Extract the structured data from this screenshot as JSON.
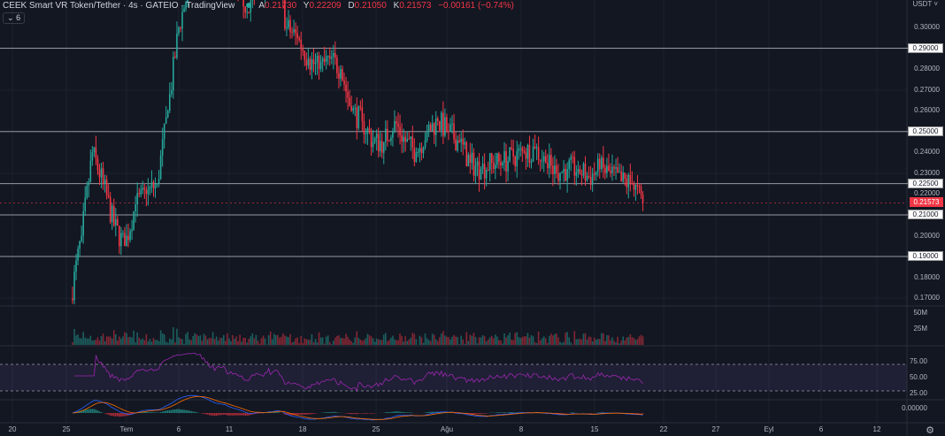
{
  "header": {
    "title": "CEEK Smart VR Token/Tether",
    "interval": "4s",
    "exchange": "GATEIO",
    "source": "TradingView",
    "open_label": "A",
    "open": "0.21730",
    "high_label": "Y",
    "high": "0.22209",
    "low_label": "D",
    "low": "0.21050",
    "close_label": "K",
    "close": "0.21573",
    "change": "−0.00161 (−0.74%)",
    "indicators_count": "6"
  },
  "currency": "USDT",
  "colors": {
    "up": "#26a69a",
    "down": "#f23645",
    "background": "#131722",
    "rsi": "#9c27b0",
    "macd": "#2962ff",
    "signal": "#ff6d00"
  },
  "chart_data": {
    "type": "candlestick",
    "price_ticks": [
      "0.30000",
      "0.28000",
      "0.27000",
      "0.26000",
      "0.24000",
      "0.23000",
      "0.22000",
      "0.20000",
      "0.18000",
      "0.17000"
    ],
    "horizontal_lines": [
      "0.29000",
      "0.25000",
      "0.22500",
      "0.21000",
      "0.19000"
    ],
    "current_price": "0.21573",
    "ylim": [
      0.165,
      0.335
    ],
    "volume_ticks": [
      "50M",
      "25M"
    ],
    "rsi_ticks": [
      "75.00",
      "50.00",
      "25.00"
    ],
    "macd_ticks": [
      "0.00000"
    ],
    "time_ticks": [
      "20",
      "25",
      "Tem",
      "6",
      "11",
      "18",
      "25",
      "Ağu",
      "8",
      "15",
      "22",
      "27",
      "Eyl",
      "6",
      "12"
    ],
    "daily_start": "Jun 26",
    "daily_close": [
      0.2,
      0.24,
      0.225,
      0.205,
      0.195,
      0.215,
      0.22,
      0.225,
      0.26,
      0.3,
      0.32,
      0.33,
      0.32,
      0.33,
      0.32,
      0.31,
      0.315,
      0.32,
      0.33,
      0.3,
      0.295,
      0.285,
      0.28,
      0.285,
      0.28,
      0.26,
      0.255,
      0.245,
      0.245,
      0.255,
      0.245,
      0.24,
      0.25,
      0.255,
      0.25,
      0.245,
      0.235,
      0.232,
      0.235,
      0.235,
      0.238,
      0.24,
      0.242,
      0.235,
      0.23,
      0.232,
      0.232,
      0.228,
      0.232,
      0.23,
      0.226,
      0.225,
      0.2157
    ]
  }
}
